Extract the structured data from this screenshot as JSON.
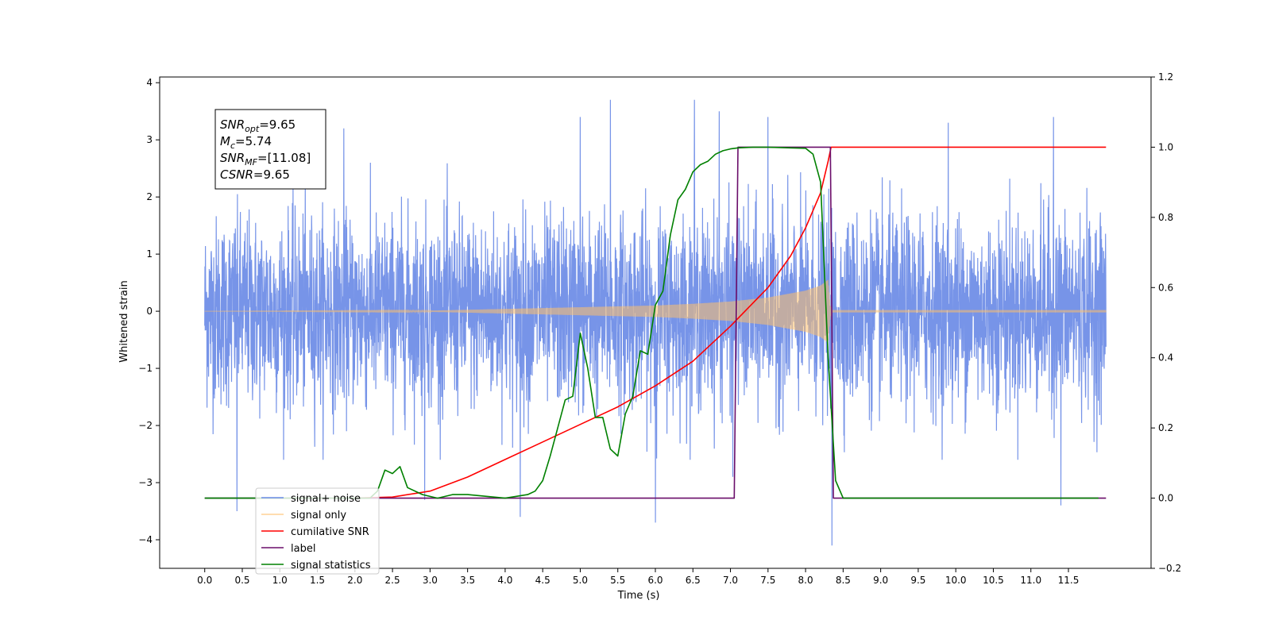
{
  "chart_data": {
    "type": "line",
    "xlabel": "Time (s)",
    "ylabel": "Whitened strain",
    "xlim": [
      -0.6,
      12.6
    ],
    "ylim": [
      -4.5,
      4.1
    ],
    "y2lim": [
      -0.2,
      1.2
    ],
    "grid": false,
    "legend_placement": "lower-left",
    "x_ticks": [
      "0.0",
      "0.5",
      "1.0",
      "1.5",
      "2.0",
      "2.5",
      "3.0",
      "3.5",
      "4.0",
      "4.5",
      "5.0",
      "5.5",
      "6.0",
      "6.5",
      "7.0",
      "7.5",
      "8.0",
      "8.5",
      "9.0",
      "9.5",
      "10.0",
      "10.5",
      "11.0",
      "11.5"
    ],
    "y_ticks": [
      "4",
      "3",
      "2",
      "1",
      "0",
      "−1",
      "−2",
      "−3",
      "−4"
    ],
    "y2_ticks": [
      "1.2",
      "1.0",
      "0.8",
      "0.6",
      "0.4",
      "0.2",
      "0.0",
      "−0.2"
    ],
    "annotation": [
      {
        "sym": "SNR",
        "sub": "opt",
        "value": "=9.65"
      },
      {
        "sym": "M",
        "sub": "c",
        "value": "=5.74"
      },
      {
        "sym": "SNR",
        "sub": "MF",
        "value": "=[11.08]"
      },
      {
        "sym": "CSNR",
        "sub": "",
        "value": "=9.65"
      }
    ],
    "series": [
      {
        "name": "signal+ noise",
        "color": "#6b8be6",
        "axis": "left",
        "style": "noise",
        "x_range": [
          0.0,
          12.0
        ],
        "noise_sigma": 1.0,
        "spikes": [
          [
            0.43,
            -3.5
          ],
          [
            2.93,
            -3.3
          ],
          [
            4.2,
            -3.6
          ],
          [
            5.0,
            3.4
          ],
          [
            6.0,
            -3.7
          ],
          [
            6.52,
            3.7
          ],
          [
            7.03,
            -2.9
          ],
          [
            7.5,
            3.4
          ],
          [
            8.35,
            -4.1
          ],
          [
            9.9,
            3.3
          ],
          [
            11.3,
            3.4
          ],
          [
            11.4,
            -3.4
          ],
          [
            1.85,
            3.2
          ],
          [
            5.4,
            3.7
          ],
          [
            6.85,
            3.5
          ]
        ]
      },
      {
        "name": "signal only",
        "color": "#ffbf69",
        "axis": "left",
        "style": "chirp",
        "x": [
          0.0,
          3.0,
          4.0,
          5.0,
          6.0,
          6.5,
          7.0,
          7.5,
          8.0,
          8.2,
          8.3,
          8.33,
          8.36,
          12.0
        ],
        "amplitude": [
          0.0,
          0.01,
          0.04,
          0.07,
          0.1,
          0.13,
          0.17,
          0.24,
          0.36,
          0.45,
          0.55,
          0.1,
          0.02,
          0.02
        ]
      },
      {
        "name": "cumilative SNR",
        "color": "#ff0000",
        "axis": "right",
        "x": [
          2.0,
          2.5,
          3.0,
          3.5,
          4.0,
          4.5,
          5.0,
          5.5,
          6.0,
          6.5,
          7.0,
          7.5,
          7.8,
          8.0,
          8.2,
          8.3,
          8.34,
          12.0
        ],
        "values": [
          0.0,
          0.003,
          0.02,
          0.06,
          0.11,
          0.16,
          0.21,
          0.26,
          0.32,
          0.39,
          0.49,
          0.6,
          0.69,
          0.77,
          0.87,
          0.96,
          1.0,
          1.0
        ]
      },
      {
        "name": "label",
        "color": "#6a0d6a",
        "axis": "right",
        "x": [
          0.0,
          7.05,
          7.1,
          8.33,
          8.37,
          12.0
        ],
        "values": [
          0.0,
          0.0,
          1.0,
          1.0,
          0.0,
          0.0
        ]
      },
      {
        "name": "signal statistics",
        "color": "#008000",
        "axis": "right",
        "x": [
          0.0,
          2.2,
          2.3,
          2.4,
          2.5,
          2.6,
          2.7,
          2.9,
          3.1,
          3.3,
          3.5,
          4.0,
          4.3,
          4.4,
          4.5,
          4.6,
          4.7,
          4.8,
          4.9,
          5.0,
          5.1,
          5.2,
          5.3,
          5.4,
          5.5,
          5.6,
          5.7,
          5.8,
          5.9,
          6.0,
          6.1,
          6.2,
          6.3,
          6.4,
          6.5,
          6.6,
          6.7,
          6.8,
          6.9,
          7.0,
          7.1,
          7.3,
          7.5,
          7.8,
          8.0,
          8.1,
          8.2,
          8.3,
          8.4,
          8.5,
          8.6,
          11.9
        ],
        "values": [
          0.0,
          0.0,
          0.02,
          0.08,
          0.07,
          0.09,
          0.03,
          0.01,
          0.0,
          0.01,
          0.01,
          0.0,
          0.01,
          0.02,
          0.05,
          0.12,
          0.2,
          0.28,
          0.29,
          0.47,
          0.37,
          0.23,
          0.23,
          0.14,
          0.12,
          0.24,
          0.29,
          0.42,
          0.41,
          0.55,
          0.59,
          0.75,
          0.85,
          0.88,
          0.93,
          0.95,
          0.96,
          0.98,
          0.99,
          0.995,
          0.998,
          1.0,
          1.0,
          0.998,
          0.997,
          0.98,
          0.9,
          0.4,
          0.05,
          0.0,
          0.0,
          0.0
        ]
      }
    ]
  }
}
